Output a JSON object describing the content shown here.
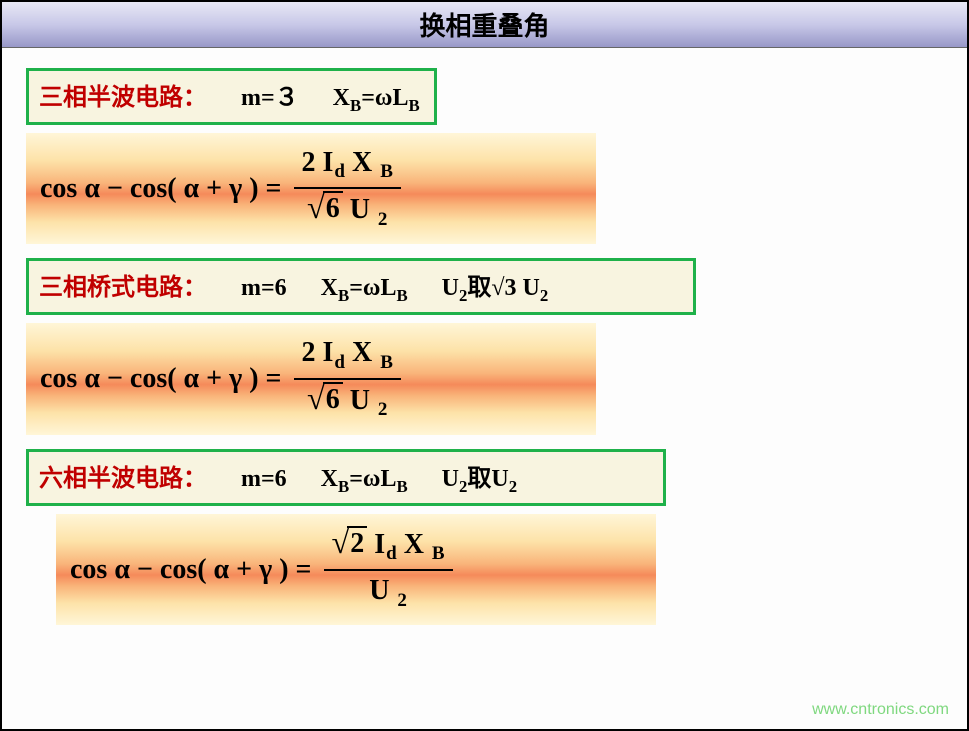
{
  "page": {
    "title": "换相重叠角",
    "watermark": "www.cntronics.com",
    "colors": {
      "titlebar_gradient": [
        "#e8e8f5",
        "#c8c8e8",
        "#9898c8"
      ],
      "box_border": "#1fb14a",
      "box_bg": "#f8f4e0",
      "label_red": "#c00000",
      "band_gradient": [
        "#fff6d8",
        "#fde2a8",
        "#f9b47a",
        "#f58a5a"
      ],
      "watermark_color": "#7fd87f",
      "slide_bg": "#fdfdfd"
    },
    "fonts": {
      "title_pt": 26,
      "header_pt": 24,
      "formula_pt": 28
    }
  },
  "sections": [
    {
      "header": {
        "label": "三相半波电路：",
        "m": "m=３",
        "xb_pre": "X",
        "xb_sub": "B",
        "xb_eq": "=ωL",
        "xb_sub2": "B",
        "extra": ""
      },
      "formula": {
        "lhs": "cos   α  −  cos(   α  +  γ )  =",
        "num": {
          "pre": "2 I",
          "s1": "d",
          "mid": " X ",
          "s2": "B"
        },
        "den": {
          "root": "6",
          "after": " U ",
          "s": "2"
        },
        "root_on_num": false
      }
    },
    {
      "header": {
        "label": "三相桥式电路：",
        "m": "m=6",
        "xb_pre": "X",
        "xb_sub": "B",
        "xb_eq": "=ωL",
        "xb_sub2": "B",
        "u2_pre": "U",
        "u2_sub": "2",
        "u2_mid": "取√3 U",
        "u2_sub2": "2",
        "has_bar": true
      },
      "formula": {
        "lhs": "cos   α  −  cos(   α  +  γ )  =",
        "num": {
          "pre": "2 I",
          "s1": "d",
          "mid": " X ",
          "s2": "B"
        },
        "den": {
          "root": "6",
          "after": " U ",
          "s": "2"
        },
        "root_on_num": false
      }
    },
    {
      "header": {
        "label": "六相半波电路：",
        "m": "m=6",
        "xb_pre": "X",
        "xb_sub": "B",
        "xb_eq": "=ωL",
        "xb_sub2": "B",
        "u2_pre": "U",
        "u2_sub": "2",
        "u2_mid": "取U",
        "u2_sub2": "2",
        "has_bar": false
      },
      "formula": {
        "lhs": "cos   α  −  cos(   α  +  γ )  =",
        "num": {
          "root": "2",
          "pre": " I",
          "s1": "d",
          "mid": " X ",
          "s2": "B"
        },
        "den": {
          "after": "U ",
          "s": "2"
        },
        "root_on_num": true
      }
    }
  ]
}
